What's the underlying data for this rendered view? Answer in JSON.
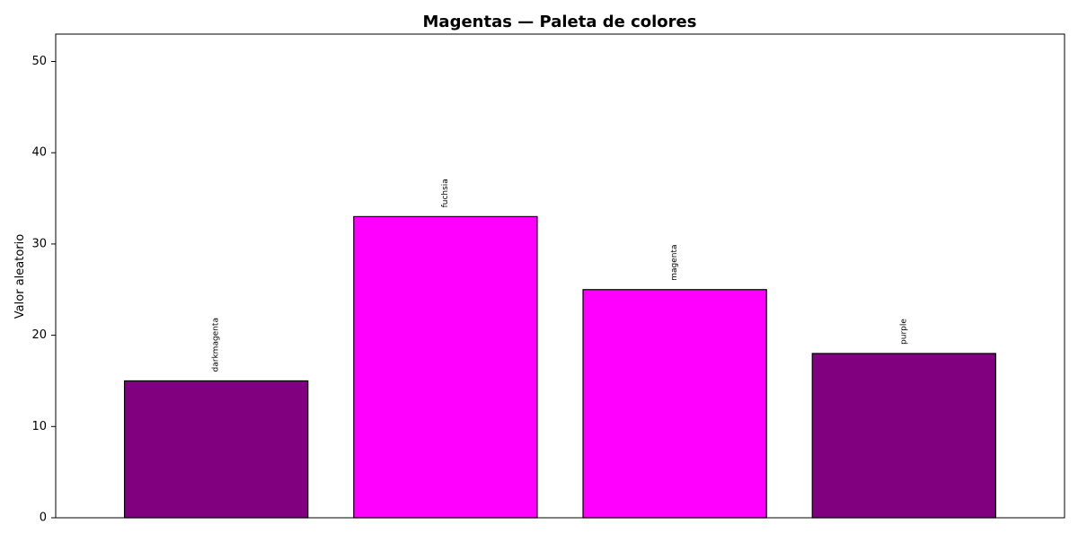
{
  "chart_data": {
    "type": "bar",
    "title": "Magentas — Paleta de colores",
    "xlabel": "",
    "ylabel": "Valor aleatorio",
    "ylim": [
      0,
      53
    ],
    "yticks": [
      0,
      10,
      20,
      30,
      40,
      50
    ],
    "grid": false,
    "categories": [
      "darkmagenta",
      "fuchsia",
      "magenta",
      "purple"
    ],
    "values": [
      15,
      33,
      25,
      18
    ],
    "colors": [
      "#800080",
      "#ff00ff",
      "#ff00ff",
      "#800080"
    ],
    "edge_color": "#000000"
  }
}
